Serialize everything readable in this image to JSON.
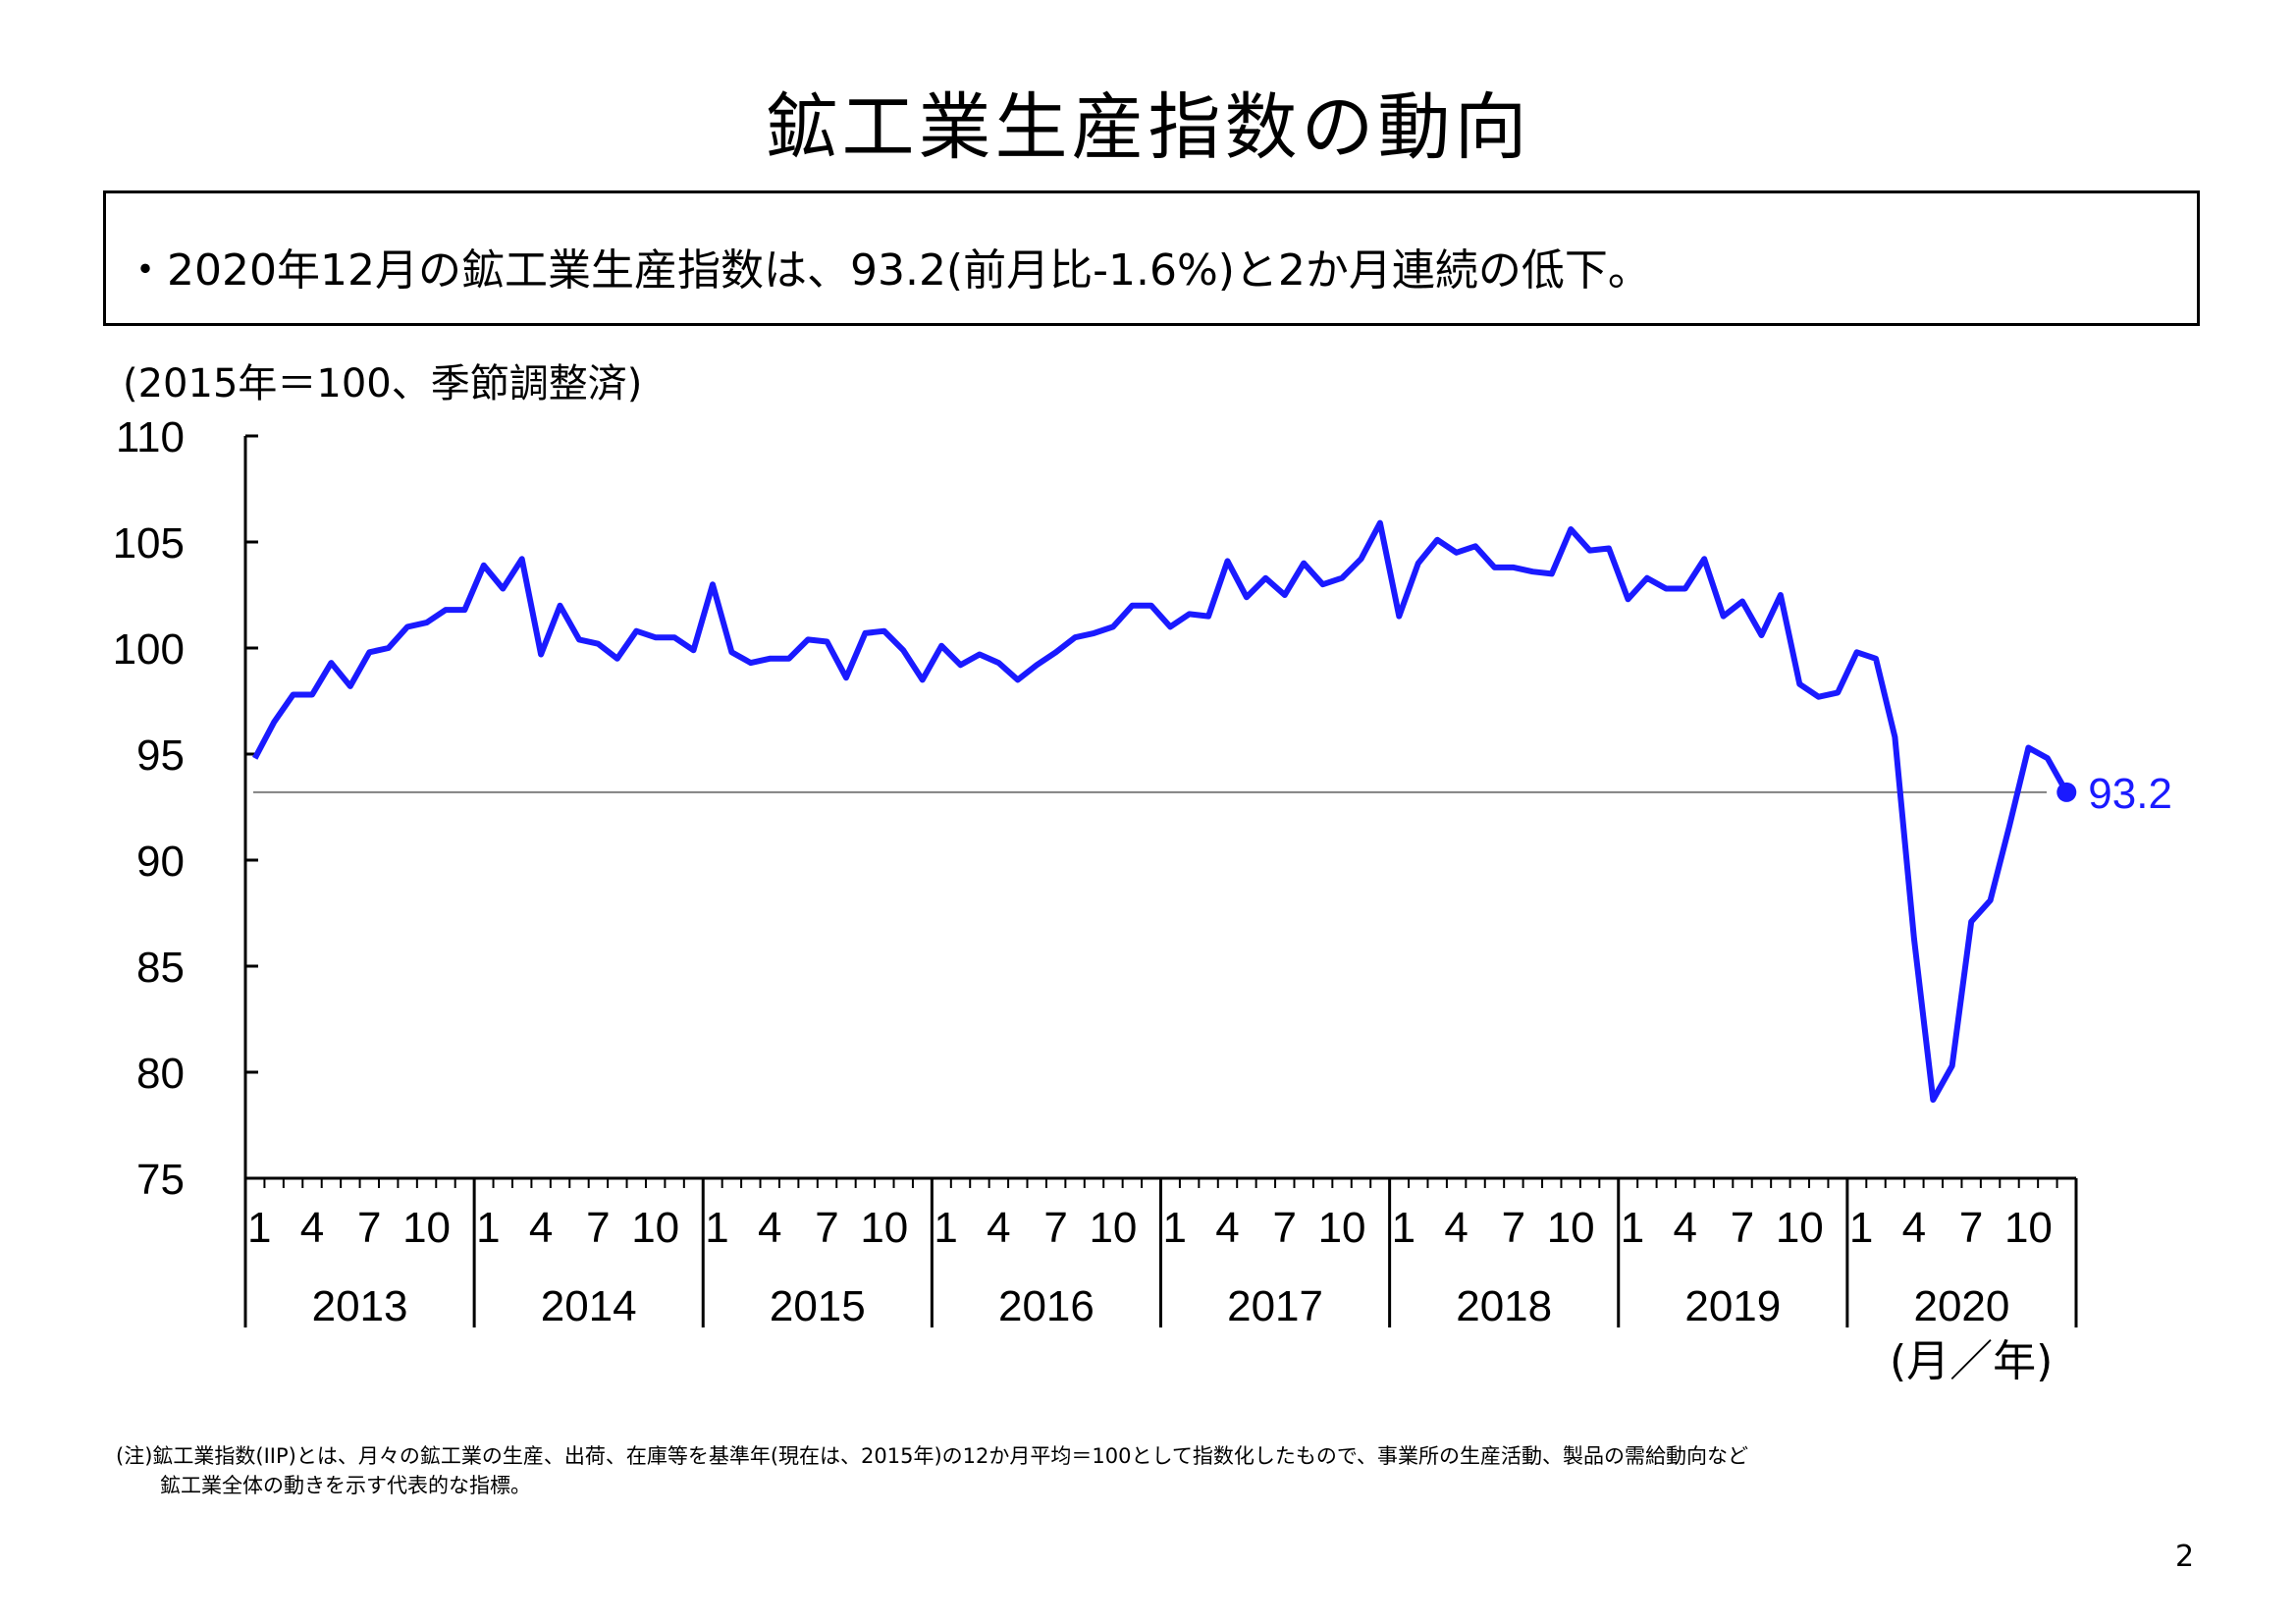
{
  "page": {
    "title": "鉱工業生産指数の動向",
    "summary": "・2020年12月の鉱工業生産指数は、93.2(前月比-1.6%)と2か月連続の低下。",
    "unit_label": "(2015年＝100、季節調整済)",
    "axis_note": "(月／年)",
    "footnote_line1": "(注)鉱工業指数(IIP)とは、月々の鉱工業の生産、出荷、在庫等を基準年(現在は、2015年)の12か月平均＝100として指数化したもので、事業所の生産活動、製品の需給動向など",
    "footnote_line2": "鉱工業全体の動きを示す代表的な指標。",
    "page_number": "2"
  },
  "colors": {
    "series": "#1a1aff",
    "reference_line": "#808080",
    "axis": "#000000"
  },
  "chart_data": {
    "type": "line",
    "title": "",
    "xlabel": "(月／年)",
    "ylabel": "(2015年＝100、季節調整済)",
    "ylim": [
      75,
      110
    ],
    "yticks": [
      75,
      80,
      85,
      90,
      95,
      100,
      105,
      110
    ],
    "years": [
      "2013",
      "2014",
      "2015",
      "2016",
      "2017",
      "2018",
      "2019",
      "2020"
    ],
    "month_ticks": [
      "1",
      "4",
      "7",
      "10"
    ],
    "grid": false,
    "legend": "none",
    "reference_value": 93.2,
    "last_point_label": "93.2",
    "series": [
      {
        "values": [
          94.8,
          96.5,
          97.8,
          97.8,
          99.3,
          98.2,
          99.8,
          100.0,
          101.0,
          101.2,
          101.8,
          101.8,
          103.9,
          102.8,
          104.2,
          99.7,
          102.0,
          100.4,
          100.2,
          99.5,
          100.8,
          100.5,
          100.5,
          99.9,
          103.0,
          99.8,
          99.3,
          99.5,
          99.5,
          100.4,
          100.3,
          98.6,
          100.7,
          100.8,
          99.9,
          98.5,
          100.1,
          99.2,
          99.7,
          99.3,
          98.5,
          99.2,
          99.8,
          100.5,
          100.7,
          101.0,
          102.0,
          102.0,
          101.0,
          101.6,
          101.5,
          104.1,
          102.4,
          103.3,
          102.5,
          104.0,
          103.0,
          103.3,
          104.2,
          105.9,
          101.5,
          104.0,
          105.1,
          104.5,
          104.8,
          103.8,
          103.8,
          103.6,
          103.5,
          105.6,
          104.6,
          104.7,
          102.3,
          103.3,
          102.8,
          102.8,
          104.2,
          101.5,
          102.2,
          100.6,
          102.5,
          98.3,
          97.7,
          97.9,
          99.8,
          99.5,
          95.8,
          86.3,
          78.7,
          80.3,
          87.1,
          88.1,
          91.6,
          95.3,
          94.8,
          93.2
        ]
      }
    ]
  }
}
